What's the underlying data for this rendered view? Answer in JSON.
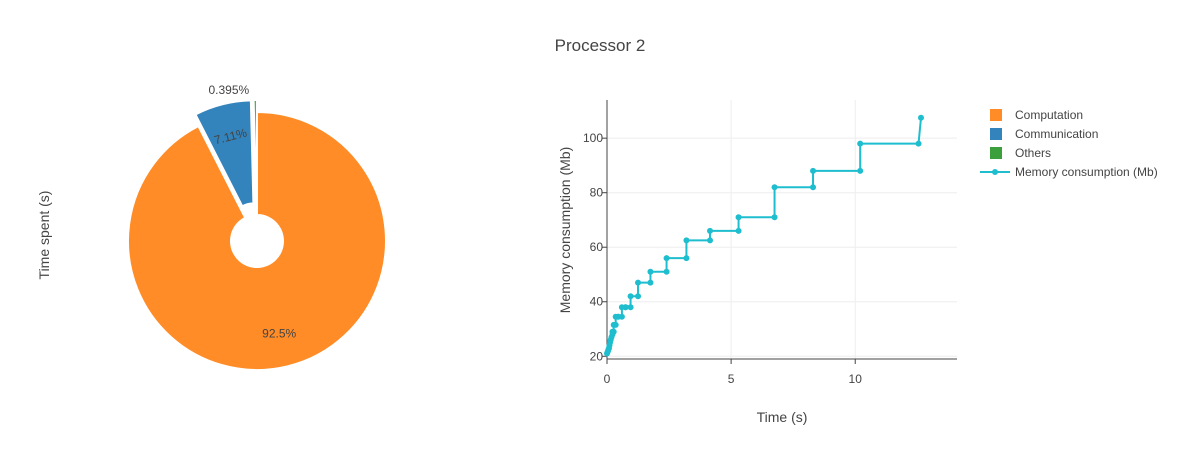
{
  "title": "Processor 2",
  "chart_data": [
    {
      "type": "pie",
      "hole": true,
      "ylabel": "Time spent (s)",
      "labels": [
        "Computation",
        "Communication",
        "Others"
      ],
      "values": [
        92.5,
        7.11,
        0.395
      ],
      "text_labels": [
        "92.5%",
        "7.11%",
        "0.395%"
      ],
      "colors": [
        "#ff8c26",
        "#3383bc",
        "#3b9f3b"
      ],
      "pulled": [
        "Communication",
        "Others"
      ]
    },
    {
      "type": "line",
      "series": [
        {
          "name": "Memory consumption (Mb)",
          "color": "#1fbecf",
          "markers": true,
          "shape": "step",
          "x": [
            0,
            0.02,
            0.04,
            0.06,
            0.08,
            0.1,
            0.12,
            0.15,
            0.18,
            0.22,
            0.22,
            0.27,
            0.27,
            0.35,
            0.35,
            0.45,
            0.45,
            0.6,
            0.6,
            0.75,
            0.75,
            0.95,
            0.95,
            1.25,
            1.25,
            1.75,
            1.75,
            2.4,
            2.4,
            3.2,
            3.2,
            4.15,
            4.15,
            5.3,
            5.3,
            6.75,
            6.75,
            8.3,
            8.3,
            10.2,
            10.2,
            12.55,
            12.65
          ],
          "y": [
            21,
            21.5,
            22,
            22.5,
            23,
            24,
            25,
            26,
            27,
            28,
            29,
            29,
            31.5,
            31.5,
            34.5,
            34.5,
            34.5,
            34.5,
            38,
            38,
            38,
            38,
            42,
            42,
            47,
            47,
            51,
            51,
            56,
            56,
            62.5,
            62.5,
            66,
            66,
            71,
            71,
            82,
            82,
            88,
            88,
            98,
            98,
            107.5
          ]
        }
      ],
      "xlabel": "Time (s)",
      "ylabel": "Memory consumption (Mb)",
      "xlim": [
        0,
        14.1
      ],
      "ylim": [
        19,
        114
      ],
      "xticks": [
        "0",
        "5",
        "10"
      ],
      "xtick_values": [
        0,
        5,
        10
      ],
      "yticks": [
        "20",
        "40",
        "60",
        "80",
        "100"
      ],
      "ytick_values": [
        20,
        40,
        60,
        80,
        100
      ],
      "grid": true
    }
  ],
  "legend": {
    "placement": "top-right",
    "items": [
      {
        "label": "Computation",
        "color": "#ff8c26",
        "kind": "square"
      },
      {
        "label": "Communication",
        "color": "#3383bc",
        "kind": "square"
      },
      {
        "label": "Others",
        "color": "#3b9f3b",
        "kind": "square"
      },
      {
        "label": "Memory consumption (Mb)",
        "color": "#1fbecf",
        "kind": "line"
      }
    ]
  }
}
